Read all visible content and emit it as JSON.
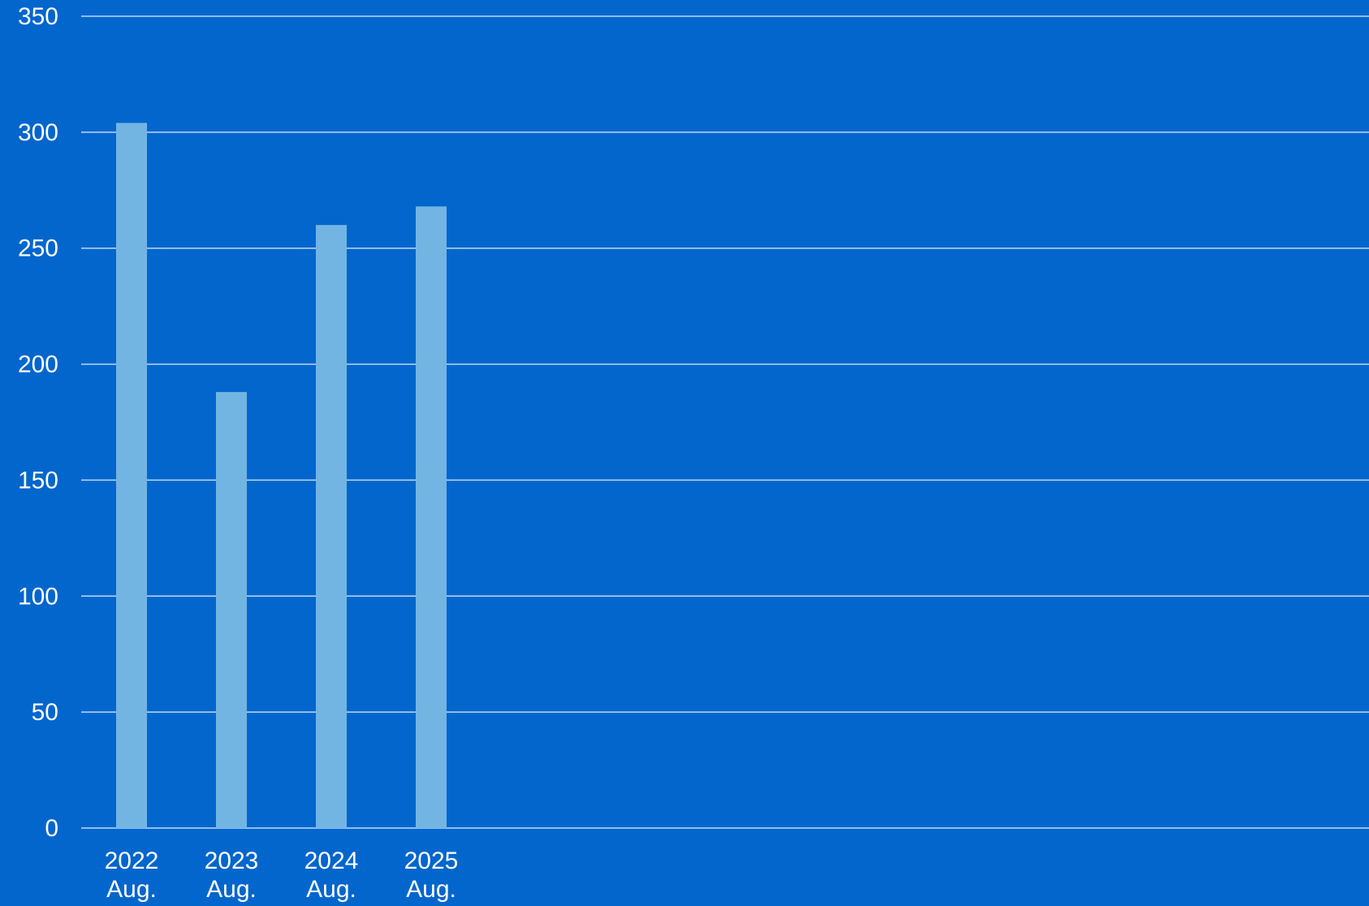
{
  "colors": {
    "background": "#0366CD",
    "bar": "#72B5E3",
    "gridline": "#BFD9F2",
    "text": "#FFFFFF"
  },
  "chart_data": {
    "type": "bar",
    "categories": [
      {
        "year": "2022",
        "month": "Aug."
      },
      {
        "year": "2023",
        "month": "Aug."
      },
      {
        "year": "2024",
        "month": "Aug."
      },
      {
        "year": "2025",
        "month": "Aug."
      }
    ],
    "values": [
      304,
      188,
      260,
      268
    ],
    "y_ticks": [
      "0",
      "50",
      "100",
      "150",
      "200",
      "250",
      "300",
      "350"
    ],
    "ylim": [
      0,
      350
    ],
    "title": "",
    "xlabel": "",
    "ylabel": "",
    "grid": true,
    "legend": "none"
  }
}
